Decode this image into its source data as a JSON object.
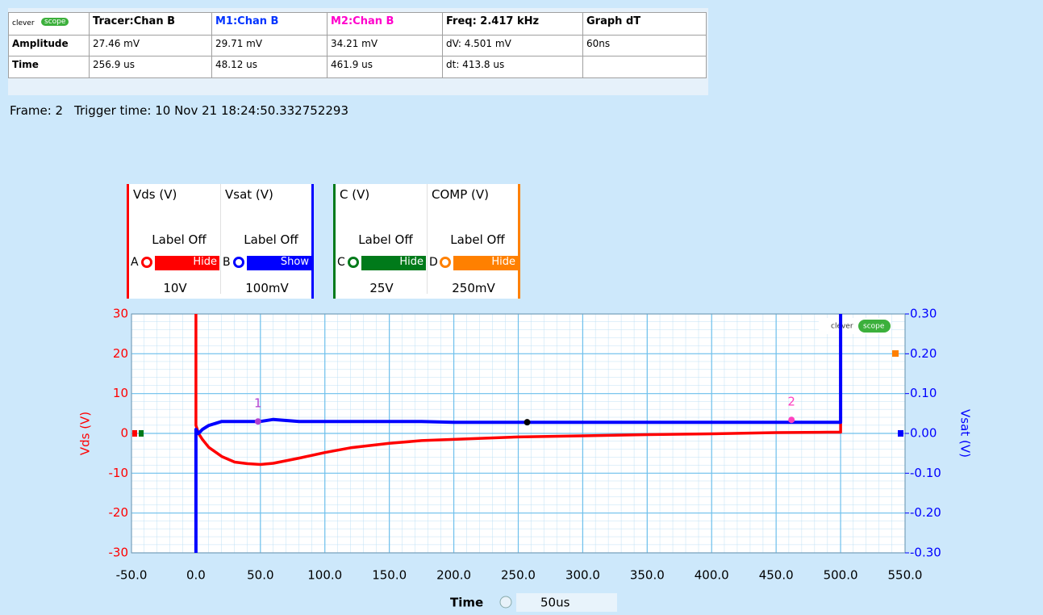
{
  "table": {
    "logo": [
      "clever",
      "scope"
    ],
    "rows": [
      [
        null,
        "Tracer:Chan B",
        "M1:Chan B",
        "M2:Chan B",
        "Freq: 2.417 kHz",
        "Graph dT"
      ],
      [
        "Amplitude",
        "27.46 mV",
        "29.71 mV",
        "34.21 mV",
        "dV: 4.501 mV",
        "60ns"
      ],
      [
        "Time",
        "256.9 us",
        "48.12 us",
        "461.9 us",
        "dt:  413.8 us",
        null
      ]
    ]
  },
  "frame": "Frame: 2",
  "trigger": "Trigger time: 10 Nov 21 18:24:50.332752293",
  "channels": [
    {
      "name": "Vds (V)",
      "label": "Label Off",
      "letter": "A",
      "button": "Hide",
      "scale": "10V",
      "color": "#ff0000"
    },
    {
      "name": "Vsat (V)",
      "label": "Label Off",
      "letter": "B",
      "button": "Show",
      "scale": "100mV",
      "color": "#0000ff"
    },
    {
      "name": "C (V)",
      "label": "Label Off",
      "letter": "C",
      "button": "Hide",
      "scale": "25V",
      "color": "#007a1a"
    },
    {
      "name": "COMP (V)",
      "label": "Label Off",
      "letter": "D",
      "button": "Hide",
      "scale": "250mV",
      "color": "#ff8000"
    }
  ],
  "chart_data": {
    "type": "line",
    "x_label": "Time",
    "timebase": "50us",
    "y_label": "Vds (V)",
    "y2_label": "Vsat (V)",
    "grid": true,
    "xlim": [
      -50,
      550
    ],
    "xticks": [
      {
        "value": -50,
        "label": "-50.0"
      },
      {
        "value": 0,
        "label": "0.0"
      },
      {
        "value": 50,
        "label": "50.0"
      },
      {
        "value": 100,
        "label": "100.0"
      },
      {
        "value": 150,
        "label": "150.0"
      },
      {
        "value": 200,
        "label": "200.0"
      },
      {
        "value": 250,
        "label": "250.0"
      },
      {
        "value": 300,
        "label": "300.0"
      },
      {
        "value": 350,
        "label": "350.0"
      },
      {
        "value": 400,
        "label": "400.0"
      },
      {
        "value": 450,
        "label": "450.0"
      },
      {
        "value": 500,
        "label": "500.0"
      },
      {
        "value": 550,
        "label": "550.0"
      }
    ],
    "ylim": [
      -30,
      30
    ],
    "yticks": [
      30,
      20,
      10,
      0,
      -10,
      -20,
      -30
    ],
    "y2lim": [
      -0.3,
      0.3
    ],
    "y2ticks": [
      {
        "value": 0.3,
        "label": "0.30"
      },
      {
        "value": 0.2,
        "label": "0.20"
      },
      {
        "value": 0.1,
        "label": "0.10"
      },
      {
        "value": 0,
        "label": "0.00"
      },
      {
        "value": -0.1,
        "label": "-0.10"
      },
      {
        "value": -0.2,
        "label": "-0.20"
      },
      {
        "value": -0.3,
        "label": "-0.30"
      }
    ],
    "x": [
      0,
      0,
      2,
      5,
      10,
      20,
      30,
      40,
      50,
      60,
      80,
      100,
      120,
      150,
      175,
      200,
      225,
      250,
      300,
      350,
      400,
      450,
      490,
      500,
      500
    ],
    "series": [
      {
        "name": "Vds (V)",
        "color": "#ff0000",
        "values": [
          30,
          2,
          0,
          -1.5,
          -3.5,
          -5.8,
          -7.2,
          -7.6,
          -7.8,
          -7.5,
          -6.2,
          -4.8,
          -3.6,
          -2.5,
          -1.8,
          -1.5,
          -1.2,
          -0.9,
          -0.6,
          -0.3,
          -0.1,
          0.2,
          0.3,
          0.3,
          30
        ]
      },
      {
        "name": "Vsat (V)",
        "color": "#0000ff",
        "axis": "y2",
        "values": [
          -0.3,
          0.01,
          0.0,
          0.01,
          0.02,
          0.03,
          0.03,
          0.03,
          0.03,
          0.035,
          0.03,
          0.03,
          0.03,
          0.03,
          0.03,
          0.028,
          0.028,
          0.028,
          0.028,
          0.028,
          0.028,
          0.028,
          0.028,
          0.028,
          0.3
        ]
      }
    ],
    "cursors": [
      {
        "label": "1",
        "x": 48.12,
        "y": 0.03,
        "color": "#b040d0"
      },
      {
        "label": "2",
        "x": 461.9,
        "y": 0.034,
        "color": "#ff40c0"
      }
    ],
    "tracer": {
      "x": 256.9,
      "y": 0.028,
      "color": "#000000"
    }
  }
}
